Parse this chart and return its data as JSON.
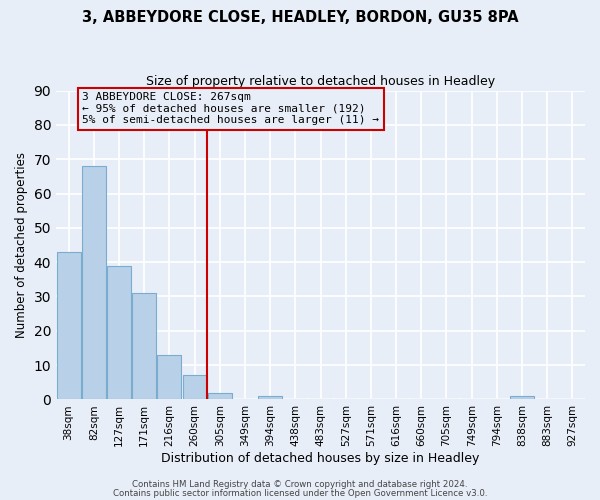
{
  "title1": "3, ABBEYDORE CLOSE, HEADLEY, BORDON, GU35 8PA",
  "title2": "Size of property relative to detached houses in Headley",
  "xlabel": "Distribution of detached houses by size in Headley",
  "ylabel": "Number of detached properties",
  "bar_labels": [
    "38sqm",
    "82sqm",
    "127sqm",
    "171sqm",
    "216sqm",
    "260sqm",
    "305sqm",
    "349sqm",
    "394sqm",
    "438sqm",
    "483sqm",
    "527sqm",
    "571sqm",
    "616sqm",
    "660sqm",
    "705sqm",
    "749sqm",
    "794sqm",
    "838sqm",
    "883sqm",
    "927sqm"
  ],
  "bar_heights": [
    43,
    68,
    39,
    31,
    13,
    7,
    2,
    0,
    1,
    0,
    0,
    0,
    0,
    0,
    0,
    0,
    0,
    0,
    1,
    0,
    0
  ],
  "bar_color": "#b8d0e8",
  "bar_edge_color": "#7aacd0",
  "vline_x": 5.5,
  "vline_color": "#cc0000",
  "ylim": [
    0,
    90
  ],
  "yticks": [
    0,
    10,
    20,
    30,
    40,
    50,
    60,
    70,
    80,
    90
  ],
  "annotation_text": "3 ABBEYDORE CLOSE: 267sqm\n← 95% of detached houses are smaller (192)\n5% of semi-detached houses are larger (11) →",
  "footer1": "Contains HM Land Registry data © Crown copyright and database right 2024.",
  "footer2": "Contains public sector information licensed under the Open Government Licence v3.0.",
  "background_color": "#e8eef8",
  "grid_color": "#ffffff"
}
